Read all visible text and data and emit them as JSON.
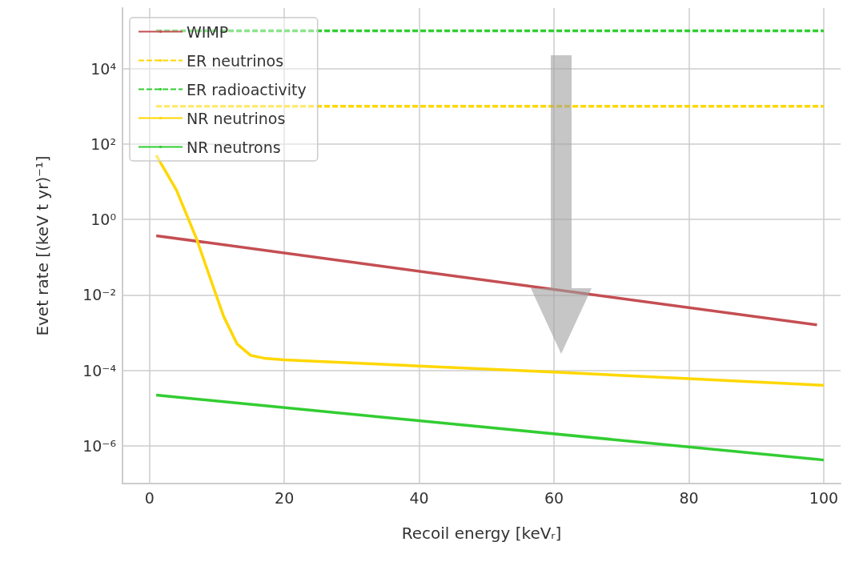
{
  "chart_data": {
    "type": "line",
    "xlabel": "Recoil energy [keVᵣ]",
    "ylabel": "Evet rate [(keV t yr)⁻¹]",
    "log": "y",
    "grid": true,
    "legend": "top left",
    "marker": "none",
    "xlim": [
      -4,
      102.5
    ],
    "xticks": [
      0,
      20,
      40,
      60,
      80,
      100
    ],
    "ylim": [
      1e-07,
      400000.0
    ],
    "yticks": [
      {
        "value": 1e-06,
        "label": "10⁻⁶"
      },
      {
        "value": 0.0001,
        "label": "10⁻⁴"
      },
      {
        "value": 0.01,
        "label": "10⁻²"
      },
      {
        "value": 1,
        "label": "10⁰"
      },
      {
        "value": 100,
        "label": "10²"
      },
      {
        "value": 10000,
        "label": "10⁴"
      }
    ],
    "series": [
      {
        "name": "WIMP",
        "color": "#c44e52",
        "line_style": "solid",
        "x": [
          1,
          99
        ],
        "values": [
          0.37,
          0.0016
        ]
      },
      {
        "name": "ER neutrinos",
        "color": "#ffd700",
        "line_style": "dashed",
        "x": [
          1,
          100
        ],
        "values": [
          1000,
          1000
        ]
      },
      {
        "name": "ER radioactivity",
        "color": "#32cd32",
        "line_style": "dashed",
        "x": [
          1,
          100
        ],
        "values": [
          100000,
          100000
        ]
      },
      {
        "name": "NR neutrinos",
        "color": "#ffd700",
        "line_style": "solid",
        "x": [
          1,
          4,
          7,
          9,
          11,
          13,
          15,
          17,
          20,
          40,
          60,
          80,
          100
        ],
        "values": [
          50,
          6,
          0.3,
          0.028,
          0.0027,
          0.0005,
          0.00025,
          0.00021,
          0.00019,
          0.00013,
          9e-05,
          6e-05,
          4e-05
        ]
      },
      {
        "name": "NR neutrons",
        "color": "#32cd32",
        "line_style": "solid",
        "x": [
          1,
          100
        ],
        "values": [
          2.2e-05,
          4.2e-07
        ]
      }
    ]
  }
}
